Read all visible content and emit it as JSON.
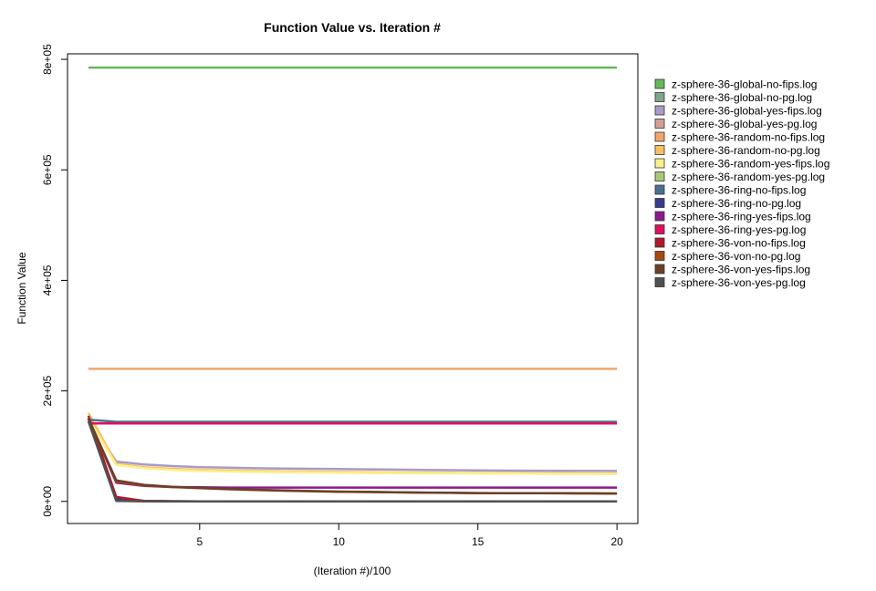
{
  "chart_data": {
    "type": "line",
    "title": "Function Value vs. Iteration #",
    "xlabel": "(Iteration #)/100",
    "ylabel": "Function Value",
    "xlim": [
      0.25,
      20.75
    ],
    "ylim": [
      -40000,
      810000
    ],
    "xticks": [
      5,
      10,
      15,
      20
    ],
    "yticks": [
      0,
      200000,
      400000,
      600000,
      800000
    ],
    "ytick_labels": [
      "0e+00",
      "2e+05",
      "4e+05",
      "6e+05",
      "8e+05"
    ],
    "grid": false,
    "legend_position": "right",
    "x": [
      1,
      2,
      3,
      4,
      5,
      6,
      7,
      8,
      9,
      10,
      11,
      12,
      13,
      14,
      15,
      16,
      17,
      18,
      19,
      20
    ],
    "series": [
      {
        "name": "z-sphere-36-global-no-fips.log",
        "color": "#66b85a",
        "values": [
          785000,
          785000,
          785000,
          785000,
          785000,
          785000,
          785000,
          785000,
          785000,
          785000,
          785000,
          785000,
          785000,
          785000,
          785000,
          785000,
          785000,
          785000,
          785000,
          785000
        ]
      },
      {
        "name": "z-sphere-36-global-no-pg.log",
        "color": "#7fa68a",
        "values": [
          150000,
          3000,
          500,
          200,
          100,
          100,
          100,
          100,
          100,
          100,
          100,
          100,
          100,
          100,
          100,
          100,
          100,
          100,
          100,
          100
        ]
      },
      {
        "name": "z-sphere-36-global-yes-fips.log",
        "color": "#a89bc8",
        "values": [
          150000,
          72000,
          67000,
          64000,
          62000,
          61000,
          60000,
          59500,
          59000,
          58500,
          58000,
          57500,
          57000,
          56500,
          56000,
          55800,
          55600,
          55400,
          55200,
          55000
        ]
      },
      {
        "name": "z-sphere-36-global-yes-pg.log",
        "color": "#d4a095",
        "values": [
          150000,
          2000,
          400,
          200,
          100,
          100,
          100,
          100,
          100,
          100,
          100,
          100,
          100,
          100,
          100,
          100,
          100,
          100,
          100,
          100
        ]
      },
      {
        "name": "z-sphere-36-random-no-fips.log",
        "color": "#f4a56a",
        "values": [
          240000,
          240000,
          240000,
          240000,
          240000,
          240000,
          240000,
          240000,
          240000,
          240000,
          240000,
          240000,
          240000,
          240000,
          240000,
          240000,
          240000,
          240000,
          240000,
          240000
        ]
      },
      {
        "name": "z-sphere-36-random-no-pg.log",
        "color": "#f8c060",
        "values": [
          160000,
          68000,
          62000,
          59000,
          57000,
          56000,
          55000,
          54500,
          54000,
          53500,
          53000,
          52500,
          52000,
          51800,
          51600,
          51400,
          51200,
          51000,
          50800,
          50600
        ]
      },
      {
        "name": "z-sphere-36-random-yes-fips.log",
        "color": "#fbf08c",
        "values": [
          150000,
          66000,
          60000,
          57000,
          55000,
          54000,
          53500,
          53000,
          52500,
          52000,
          51500,
          51200,
          51000,
          50800,
          50600,
          50400,
          50200,
          50000,
          49800,
          49600
        ]
      },
      {
        "name": "z-sphere-36-random-yes-pg.log",
        "color": "#a8c878",
        "values": [
          150000,
          1500,
          300,
          100,
          100,
          100,
          100,
          100,
          100,
          100,
          100,
          100,
          100,
          100,
          100,
          100,
          100,
          100,
          100,
          100
        ]
      },
      {
        "name": "z-sphere-36-ring-no-fips.log",
        "color": "#4a7090",
        "values": [
          148000,
          144000,
          144000,
          144000,
          144000,
          144000,
          144000,
          144000,
          144000,
          144000,
          144000,
          144000,
          144000,
          144000,
          144000,
          144000,
          144000,
          144000,
          144000,
          144000
        ]
      },
      {
        "name": "z-sphere-36-ring-no-pg.log",
        "color": "#3a3a90",
        "values": [
          150000,
          4000,
          800,
          300,
          150,
          100,
          100,
          100,
          100,
          100,
          100,
          100,
          100,
          100,
          100,
          100,
          100,
          100,
          100,
          100
        ]
      },
      {
        "name": "z-sphere-36-ring-yes-fips.log",
        "color": "#8c1a8c",
        "values": [
          150000,
          34000,
          28000,
          26000,
          25500,
          25000,
          25000,
          25000,
          25000,
          25000,
          25000,
          25000,
          25000,
          25000,
          25000,
          25000,
          25000,
          25000,
          25000,
          25000
        ]
      },
      {
        "name": "z-sphere-36-ring-yes-pg.log",
        "color": "#e0105a",
        "values": [
          141000,
          141000,
          141000,
          141000,
          141000,
          141000,
          141000,
          141000,
          141000,
          141000,
          141000,
          141000,
          141000,
          141000,
          141000,
          141000,
          141000,
          141000,
          141000,
          141000
        ]
      },
      {
        "name": "z-sphere-36-von-no-fips.log",
        "color": "#b01a2a",
        "values": [
          155000,
          8000,
          1000,
          300,
          150,
          100,
          100,
          100,
          100,
          100,
          100,
          100,
          100,
          100,
          100,
          100,
          100,
          100,
          100,
          100
        ]
      },
      {
        "name": "z-sphere-36-von-no-pg.log",
        "color": "#a84a10",
        "values": [
          150000,
          36000,
          29000,
          26000,
          24000,
          22000,
          20500,
          19500,
          18500,
          17500,
          17000,
          16500,
          16000,
          15500,
          15000,
          15000,
          15000,
          14800,
          14600,
          14500
        ]
      },
      {
        "name": "z-sphere-36-von-yes-fips.log",
        "color": "#6a4028",
        "values": [
          150000,
          38000,
          30000,
          26500,
          24500,
          22500,
          21000,
          19800,
          18800,
          17800,
          17200,
          16600,
          16000,
          15600,
          15200,
          15000,
          14800,
          14600,
          14400,
          14200
        ]
      },
      {
        "name": "z-sphere-36-von-yes-pg.log",
        "color": "#505050",
        "values": [
          145000,
          1000,
          200,
          100,
          100,
          100,
          100,
          100,
          100,
          100,
          100,
          100,
          100,
          100,
          100,
          100,
          100,
          100,
          100,
          100
        ]
      }
    ]
  }
}
